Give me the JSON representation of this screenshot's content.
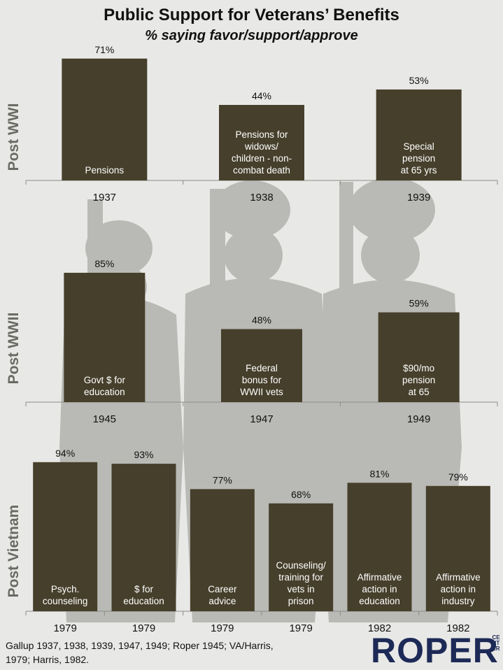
{
  "title": "Public Support for Veterans’ Benefits",
  "subtitle": "% saying favor/support/approve",
  "source": "Gallup 1937, 1938, 1939, 1947, 1949; Roper 1945; VA/Harris, 1979; Harris, 1982.",
  "logo": "ROPER",
  "logo_sub": "CENTER",
  "colors": {
    "bar": "#463f2b",
    "bar_text": "#ffffff",
    "silhouette": "#b9b9b5",
    "panel_label": "#6a6a64"
  },
  "chart_data": [
    {
      "type": "bar",
      "panel": "Post WWI",
      "ylim": [
        0,
        100
      ],
      "categories": [
        "1937",
        "1938",
        "1939"
      ],
      "values": [
        71,
        44,
        53
      ],
      "value_labels": [
        "71%",
        "44%",
        "53%"
      ],
      "bar_labels": [
        [
          "Pensions"
        ],
        [
          "Pensions for",
          "widows/",
          "children  - non-",
          "combat death"
        ],
        [
          "Special",
          "pension",
          "at 65 yrs"
        ]
      ]
    },
    {
      "type": "bar",
      "panel": "Post WWII",
      "ylim": [
        0,
        100
      ],
      "categories": [
        "1945",
        "1947",
        "1949"
      ],
      "values": [
        85,
        48,
        59
      ],
      "value_labels": [
        "85%",
        "48%",
        "59%"
      ],
      "bar_labels": [
        [
          "Govt $ for",
          "education"
        ],
        [
          "Federal",
          "bonus for",
          "WWII vets"
        ],
        [
          "$90/mo",
          "pension",
          "at 65"
        ]
      ]
    },
    {
      "type": "bar",
      "panel": "Post Vietnam",
      "ylim": [
        0,
        100
      ],
      "categories": [
        "1979",
        "1979",
        "1979",
        "1979",
        "1982",
        "1982"
      ],
      "values": [
        94,
        93,
        77,
        68,
        81,
        79
      ],
      "value_labels": [
        "94%",
        "93%",
        "77%",
        "68%",
        "81%",
        "79%"
      ],
      "bar_labels": [
        [
          "Psych.",
          "counseling"
        ],
        [
          "$ for",
          "education"
        ],
        [
          "Career",
          "advice"
        ],
        [
          "Counseling/",
          "training for",
          "vets in",
          "prison"
        ],
        [
          "Affirmative",
          "action in",
          "education"
        ],
        [
          "Affirmative",
          "action in",
          "industry"
        ]
      ]
    }
  ]
}
